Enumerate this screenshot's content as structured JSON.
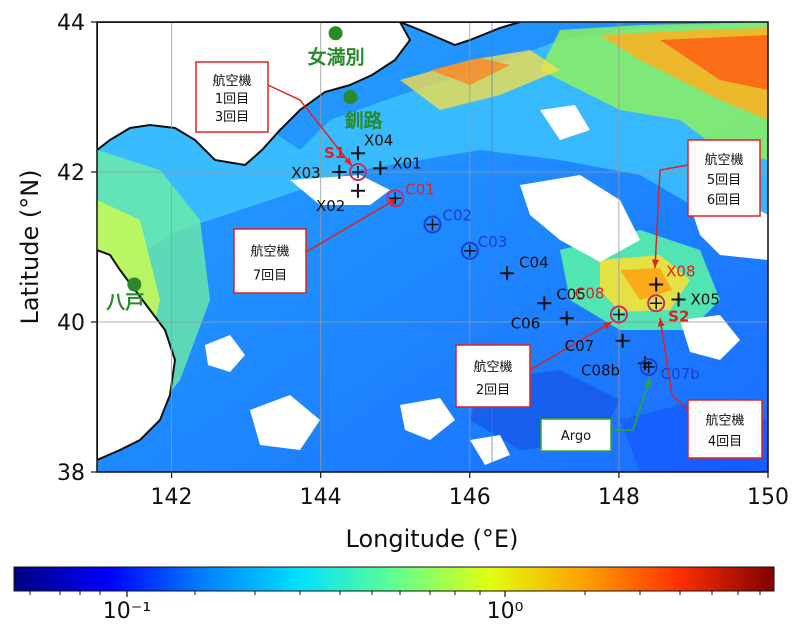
{
  "map": {
    "xlabel": "Longitude (°E)",
    "ylabel": "Latitude (°N)",
    "xlim": [
      141,
      150
    ],
    "ylim": [
      38,
      44
    ],
    "xticks": [
      {
        "v": 142,
        "label": "142"
      },
      {
        "v": 144,
        "label": "144"
      },
      {
        "v": 146,
        "label": "146"
      },
      {
        "v": 148,
        "label": "148"
      },
      {
        "v": 150,
        "label": "150"
      }
    ],
    "yticks": [
      {
        "v": 38,
        "label": "38"
      },
      {
        "v": 40,
        "label": "40"
      },
      {
        "v": 42,
        "label": "42"
      },
      {
        "v": 44,
        "label": "44"
      }
    ],
    "colorbar": {
      "scale": "log",
      "ticks": [
        "10⁻¹",
        "10⁰"
      ],
      "colors": [
        "#00007f",
        "#0000ff",
        "#0080ff",
        "#00e0ff",
        "#60ff90",
        "#e0ff10",
        "#ffa000",
        "#ff3000",
        "#7f0000"
      ]
    },
    "places": [
      {
        "name": "女満別",
        "lon": 144.2,
        "lat": 43.85
      },
      {
        "name": "釧路",
        "lon": 144.4,
        "lat": 43.0
      },
      {
        "name": "八戸",
        "lon": 141.5,
        "lat": 40.5
      }
    ],
    "cross_stations": [
      {
        "id": "X01",
        "lon": 144.8,
        "lat": 42.05,
        "color": "#111111"
      },
      {
        "id": "X02",
        "lon": 144.5,
        "lat": 41.75,
        "color": "#111111"
      },
      {
        "id": "X03",
        "lon": 144.25,
        "lat": 42.0,
        "color": "#111111"
      },
      {
        "id": "X04",
        "lon": 144.5,
        "lat": 42.25,
        "color": "#111111"
      },
      {
        "id": "X05",
        "lon": 148.8,
        "lat": 40.3,
        "color": "#111111"
      },
      {
        "id": "X08",
        "lon": 148.5,
        "lat": 40.5,
        "color": "#e0221f"
      },
      {
        "id": "C04",
        "lon": 146.5,
        "lat": 40.65,
        "color": "#111111"
      },
      {
        "id": "C05",
        "lon": 147.0,
        "lat": 40.25,
        "color": "#111111"
      },
      {
        "id": "C06",
        "lon": 147.3,
        "lat": 40.05,
        "color": "#111111"
      },
      {
        "id": "C07",
        "lon": 148.05,
        "lat": 39.75,
        "color": "#111111"
      },
      {
        "id": "C08b",
        "lon": 148.35,
        "lat": 39.45,
        "color": "#111111"
      }
    ],
    "circle_stations": [
      {
        "id": "S1",
        "lon": 144.5,
        "lat": 42.0,
        "color": "#e0221f"
      },
      {
        "id": "C01",
        "lon": 145.0,
        "lat": 41.65,
        "color": "#e0221f"
      },
      {
        "id": "C02",
        "lon": 145.5,
        "lat": 41.3,
        "color": "#1c3fd0"
      },
      {
        "id": "C03",
        "lon": 146.0,
        "lat": 40.95,
        "color": "#1c3fd0"
      },
      {
        "id": "C08",
        "lon": 148.0,
        "lat": 40.1,
        "color": "#e0221f"
      },
      {
        "id": "S2",
        "lon": 148.5,
        "lat": 40.25,
        "color": "#e0221f"
      },
      {
        "id": "C07b",
        "lon": 148.4,
        "lat": 39.4,
        "color": "#1c3fd0"
      }
    ],
    "callouts": [
      {
        "key": "c1",
        "lines": [
          "航空機",
          "1回目",
          "3回目"
        ],
        "border": "#e0221f"
      },
      {
        "key": "c2",
        "lines": [
          "航空機",
          "7回目"
        ],
        "border": "#e0221f"
      },
      {
        "key": "c3",
        "lines": [
          "航空機",
          "5回目",
          "6回目"
        ],
        "border": "#e0221f"
      },
      {
        "key": "c4",
        "lines": [
          "航空機",
          "2回目"
        ],
        "border": "#e0221f"
      },
      {
        "key": "c5",
        "lines": [
          "航空機",
          "4回目"
        ],
        "border": "#e0221f"
      },
      {
        "key": "c6",
        "lines": [
          "Argo"
        ],
        "border": "#2ea82e"
      }
    ]
  }
}
